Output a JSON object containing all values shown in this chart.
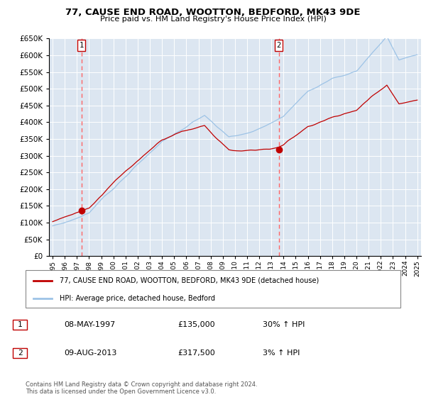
{
  "title": "77, CAUSE END ROAD, WOOTTON, BEDFORD, MK43 9DE",
  "subtitle": "Price paid vs. HM Land Registry's House Price Index (HPI)",
  "legend_line1": "77, CAUSE END ROAD, WOOTTON, BEDFORD, MK43 9DE (detached house)",
  "legend_line2": "HPI: Average price, detached house, Bedford",
  "footer": "Contains HM Land Registry data © Crown copyright and database right 2024.\nThis data is licensed under the Open Government Licence v3.0.",
  "sale1_date": "08-MAY-1997",
  "sale1_price": 135000,
  "sale1_pct": "30% ↑ HPI",
  "sale2_date": "09-AUG-2013",
  "sale2_price": 317500,
  "sale2_pct": "3% ↑ HPI",
  "sale1_year": 1997.36,
  "sale2_year": 2013.61,
  "ylim": [
    0,
    650000
  ],
  "yticks": [
    0,
    50000,
    100000,
    150000,
    200000,
    250000,
    300000,
    350000,
    400000,
    450000,
    500000,
    550000,
    600000,
    650000
  ],
  "xlim_left": 1994.7,
  "xlim_right": 2025.3,
  "bg_color": "#dce6f1",
  "red_line_color": "#c00000",
  "blue_line_color": "#9dc3e6",
  "marker_color": "#c00000",
  "dashed_color": "#ff6666"
}
